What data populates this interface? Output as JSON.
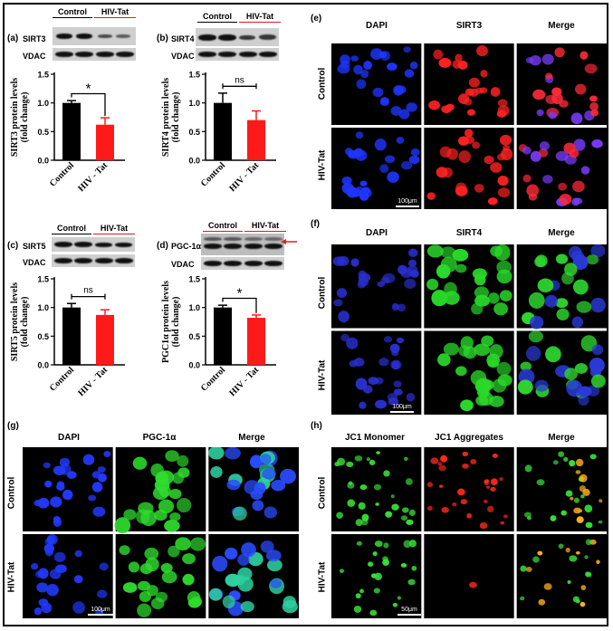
{
  "panels": {
    "a": {
      "label": "(a)",
      "protein": "SIRT3",
      "loading": "VDAC",
      "control": "Control",
      "treated": "HIV-Tat",
      "chart_data": {
        "type": "bar",
        "ylabel": "SIRT3 protein levels\n(fold change)",
        "categories": [
          "Control",
          "HIV - Tat"
        ],
        "values": [
          1.0,
          0.62
        ],
        "errors": [
          0.04,
          0.12
        ],
        "ylim": [
          0,
          1.5
        ],
        "yticks": [
          "0.0",
          "0.5",
          "1.0",
          "1.5"
        ],
        "significance": "*",
        "colors": [
          "#000000",
          "#ff1a1a"
        ]
      }
    },
    "b": {
      "label": "(b)",
      "protein": "SIRT4",
      "loading": "VDAC",
      "control": "Control",
      "treated": "HIV-Tat",
      "chart_data": {
        "type": "bar",
        "ylabel": "SIRT4 protein levels\n(fold change)",
        "categories": [
          "Control",
          "HIV - Tat"
        ],
        "values": [
          1.0,
          0.7
        ],
        "errors": [
          0.17,
          0.16
        ],
        "ylim": [
          0,
          1.5
        ],
        "yticks": [
          "0.0",
          "0.5",
          "1.0",
          "1.5"
        ],
        "significance": "ns",
        "colors": [
          "#000000",
          "#ff1a1a"
        ]
      }
    },
    "c": {
      "label": "(c)",
      "protein": "SIRT5",
      "loading": "VDAC",
      "control": "Control",
      "treated": "HIV-Tat",
      "chart_data": {
        "type": "bar",
        "ylabel": "SIRT5 protein levels\n(fold change)",
        "categories": [
          "Control",
          "HIV - Tat"
        ],
        "values": [
          1.0,
          0.87
        ],
        "errors": [
          0.07,
          0.09
        ],
        "ylim": [
          0,
          1.5
        ],
        "yticks": [
          "0.0",
          "0.5",
          "1.0",
          "1.5"
        ],
        "significance": "ns",
        "colors": [
          "#000000",
          "#ff1a1a"
        ]
      }
    },
    "d": {
      "label": "(d)",
      "protein": "PGC-1α",
      "loading": "VDAC",
      "control": "Control",
      "treated": "HIV-Tat",
      "chart_data": {
        "type": "bar",
        "ylabel": "PGC1α protein levels\n(fold change)",
        "categories": [
          "Control",
          "HIV - Tat"
        ],
        "values": [
          1.0,
          0.82
        ],
        "errors": [
          0.04,
          0.05
        ],
        "ylim": [
          0,
          1.5
        ],
        "yticks": [
          "0.0",
          "0.5",
          "1.0",
          "1.5"
        ],
        "significance": "*",
        "colors": [
          "#000000",
          "#ff1a1a"
        ]
      }
    },
    "e": {
      "label": "(e)",
      "cols": [
        "DAPI",
        "SIRT3",
        "Merge"
      ],
      "rows": [
        "Control",
        "HIV-Tat"
      ],
      "scale": "100μm"
    },
    "f": {
      "label": "(f)",
      "cols": [
        "DAPI",
        "SIRT4",
        "Merge"
      ],
      "rows": [
        "Control",
        "HIV-Tat"
      ],
      "scale": "100μm"
    },
    "g": {
      "label": "(g)",
      "cols": [
        "DAPI",
        "PGC-1α",
        "Merge"
      ],
      "rows": [
        "Control",
        "HIV-Tat"
      ],
      "scale": "100μm"
    },
    "h": {
      "label": "(h)",
      "cols": [
        "JC1 Monomer",
        "JC1 Aggregates",
        "Merge"
      ],
      "rows": [
        "Control",
        "HIV-Tat"
      ],
      "scale": "50μm"
    }
  },
  "colors": {
    "control_bar": "#000000",
    "tat_bar": "#ff1a1a",
    "tat_underline": "#d31f26",
    "arrow": "#e0201f"
  }
}
